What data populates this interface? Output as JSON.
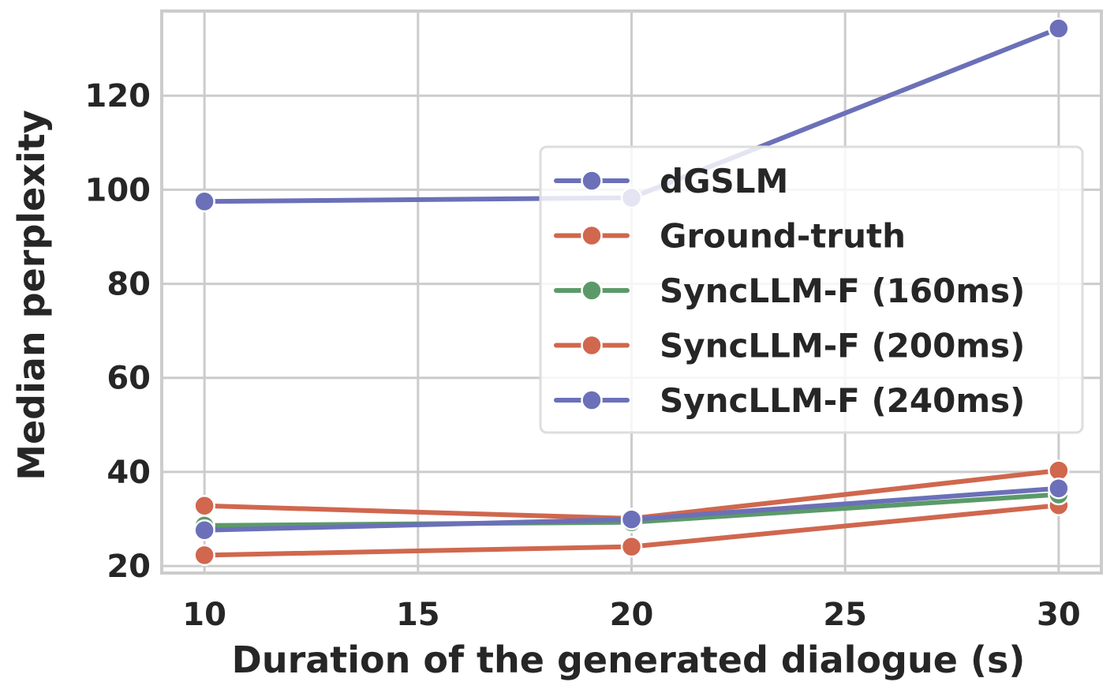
{
  "chart_data": {
    "type": "line",
    "xlabel": "Duration of the generated dialogue (s)",
    "ylabel": "Median perplexity",
    "xlim": [
      9,
      31
    ],
    "ylim": [
      18.5,
      138
    ],
    "xticks": [
      10,
      15,
      20,
      25,
      30
    ],
    "yticks": [
      20,
      40,
      60,
      80,
      100,
      120
    ],
    "grid": true,
    "legend_position": "center-right",
    "x": [
      10,
      20,
      30
    ],
    "series": [
      {
        "name": "dGSLM",
        "color": "#6b70b8",
        "values": [
          97.5,
          98.3,
          134.3
        ]
      },
      {
        "name": "Ground-truth",
        "color": "#d0674e",
        "values": [
          22.3,
          24.1,
          32.9
        ]
      },
      {
        "name": "SyncLLM-F (160ms)",
        "color": "#5b9a68",
        "values": [
          28.6,
          29.3,
          35.2
        ]
      },
      {
        "name": "SyncLLM-F (200ms)",
        "color": "#d0674e",
        "values": [
          32.8,
          30.1,
          40.3
        ]
      },
      {
        "name": "SyncLLM-F (240ms)",
        "color": "#6b70b8",
        "values": [
          27.6,
          29.9,
          36.5
        ]
      }
    ]
  }
}
